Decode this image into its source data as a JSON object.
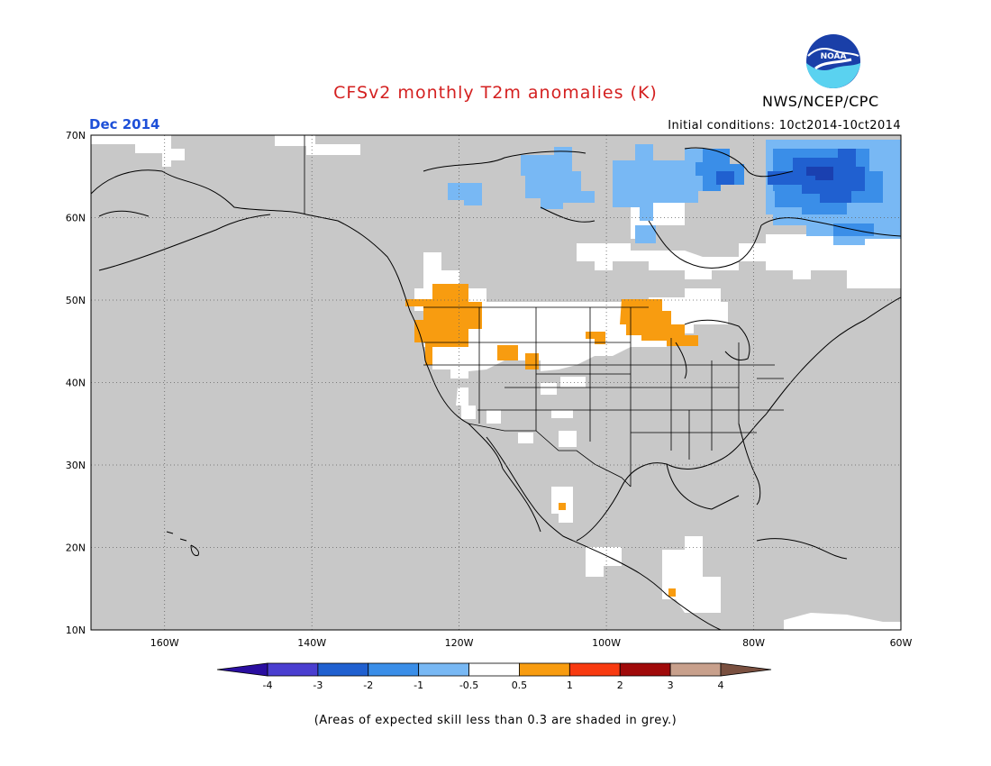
{
  "title": "CFSv2 monthly T2m anomalies (K)",
  "organization": "NWS/NCEP/CPC",
  "logo_text": "NOAA",
  "forecast_month": "Dec 2014",
  "initial_conditions": "Initial conditions: 10ct2014-10ct2014",
  "footnote": "(Areas of expected skill less than 0.3 are shaded in grey.)",
  "map": {
    "lat_labels": [
      "70N",
      "60N",
      "50N",
      "40N",
      "30N",
      "20N",
      "10N"
    ],
    "lon_labels": [
      "160W",
      "140W",
      "120W",
      "100W",
      "80W",
      "60W"
    ],
    "lat_range": [
      10,
      70
    ],
    "lon_range": [
      -170,
      -60
    ],
    "skill_mask_color": "#c8c8c8",
    "land_color": "#ffffff"
  },
  "colorbar": {
    "labels": [
      "-4",
      "-3",
      "-2",
      "-1",
      "-0.5",
      "0.5",
      "1",
      "2",
      "3",
      "4"
    ],
    "colors": [
      "#2a0ea0",
      "#4a3ed0",
      "#2060d0",
      "#3a8ee8",
      "#78b8f4",
      "#ffffff",
      "#f89c10",
      "#f83a10",
      "#a00a0a",
      "#c8a08c",
      "#7a5040"
    ]
  },
  "colors": {
    "warm_anomaly": "#f89c10",
    "cool_anomaly_light": "#78b8f4",
    "cool_anomaly_medium": "#3a8ee8",
    "cool_anomaly_dark": "#2060d0",
    "cool_anomaly_darkest": "#1a40b0",
    "title": "#d42020",
    "month": "#1e50d8"
  }
}
